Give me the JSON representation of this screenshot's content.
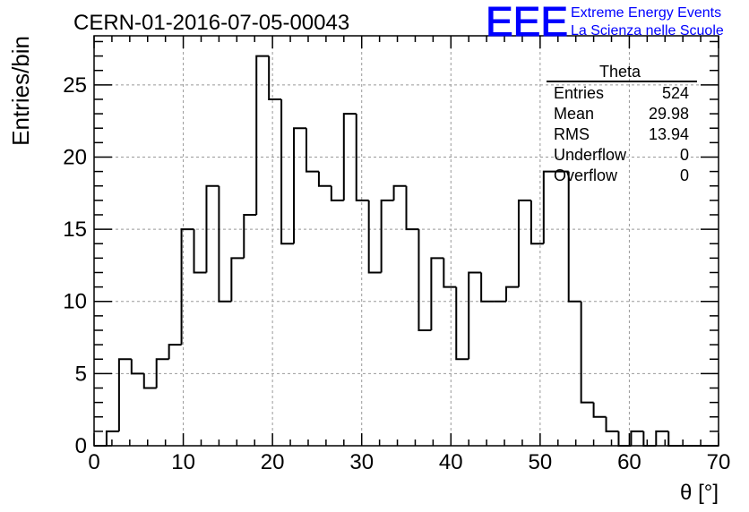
{
  "header": {
    "run_title": "CERN-01-2016-07-05-00043",
    "logo_text": "EEE",
    "project_line1": "Extreme Energy Events",
    "project_line2": "La Scienza nelle Scuole",
    "brand_color": "#0000ff"
  },
  "stats_box": {
    "title": "Theta",
    "rows": [
      {
        "label": "Entries",
        "value": "524"
      },
      {
        "label": "Mean",
        "value": "29.98"
      },
      {
        "label": "RMS",
        "value": "13.94"
      },
      {
        "label": "Underflow",
        "value": "0"
      },
      {
        "label": "Overflow",
        "value": "0"
      }
    ]
  },
  "chart_data": {
    "type": "bar",
    "style": "step-histogram",
    "title": "CERN-01-2016-07-05-00043",
    "xlabel": "θ [°]",
    "ylabel": "Entries/bin",
    "xlim": [
      0,
      70
    ],
    "ylim": [
      0,
      28.4
    ],
    "grid": true,
    "bin_width": 1.4,
    "bin_edges_start": 0,
    "values": [
      0,
      1,
      6,
      5,
      4,
      6,
      7,
      15,
      12,
      18,
      10,
      13,
      16,
      27,
      24,
      14,
      22,
      19,
      18,
      17,
      23,
      17,
      12,
      17,
      18,
      15,
      8,
      13,
      11,
      6,
      12,
      10,
      10,
      11,
      17,
      14,
      19,
      19,
      10,
      3,
      2,
      1,
      0,
      1,
      0,
      1,
      0,
      0,
      0,
      0
    ],
    "x_ticks": [
      "0",
      "10",
      "20",
      "30",
      "40",
      "50",
      "60",
      "70"
    ],
    "y_ticks": [
      "0",
      "5",
      "10",
      "15",
      "20",
      "25"
    ],
    "line_color": "#000000",
    "grid_color": "#999999"
  }
}
